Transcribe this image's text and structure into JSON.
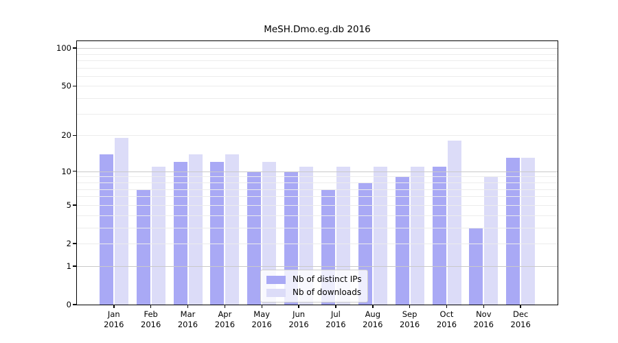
{
  "chart_data": {
    "type": "bar",
    "title": "MeSH.Dmo.eg.db 2016",
    "categories": [
      "Jan",
      "Feb",
      "Mar",
      "Apr",
      "May",
      "Jun",
      "Jul",
      "Aug",
      "Sep",
      "Oct",
      "Nov",
      "Dec"
    ],
    "category_year": "2016",
    "series": [
      {
        "name": "Nb of distinct IPs",
        "color": "#a9a9f5",
        "values": [
          14,
          7,
          12,
          12,
          10,
          10,
          7,
          8,
          9,
          11,
          3,
          13
        ]
      },
      {
        "name": "Nb of downloads",
        "color": "#dcdcf8",
        "values": [
          19,
          11,
          14,
          14,
          12,
          11,
          11,
          11,
          11,
          18,
          9,
          13
        ]
      }
    ],
    "yscale": "log1p",
    "ylim": [
      0,
      113.3
    ],
    "yticks": [
      0,
      1,
      2,
      5,
      10,
      20,
      50,
      100
    ],
    "major_gridlines": [
      1,
      10,
      100
    ],
    "minor_gridlines": [
      2,
      3,
      4,
      5,
      6,
      7,
      8,
      9,
      20,
      30,
      40,
      50,
      60,
      70,
      80,
      90
    ],
    "grid": true,
    "legend_position": "lower center",
    "colors": {
      "axis": "#000000",
      "text": "#000000",
      "major_grid": "#c9c9c9",
      "minor_grid": "#ececec",
      "legend_border": "#cccccc"
    }
  }
}
